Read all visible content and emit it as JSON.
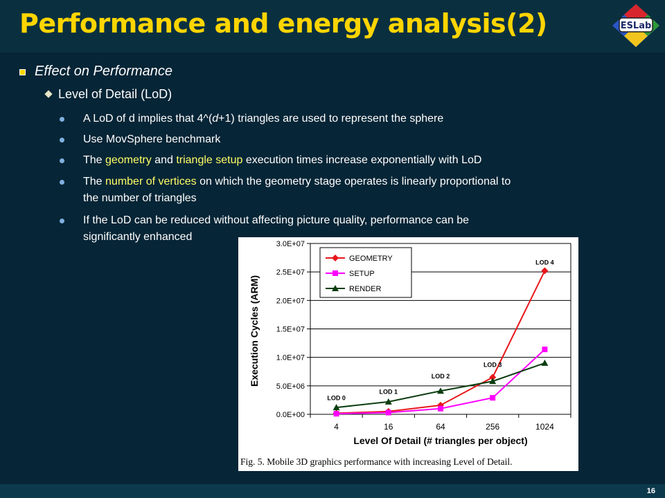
{
  "slide": {
    "title": "Performance and energy analysis(2)",
    "logo_text": "ESLab",
    "page_number": "16"
  },
  "bullets": {
    "l1": "Effect on Performance",
    "l2": "Level of Detail (LoD)",
    "b1a": "A LoD of d implies that 4^(",
    "b1b": "d",
    "b1c": "+1) triangles are used to represent the sphere",
    "b2": "Use MovSphere benchmark",
    "b3a": "The ",
    "b3b": "geometry",
    "b3c": " and ",
    "b3d": "triangle setup",
    "b3e": " execution times increase exponentially with LoD",
    "b4a": "The ",
    "b4b": "number of vertices",
    "b4c": " on which the geometry stage operates is linearly proportional to",
    "b4d": "the number of triangles",
    "b5a": "If the LoD can be reduced without affecting picture quality, performance can be",
    "b5b": "significantly enhanced"
  },
  "chart_data": {
    "type": "line",
    "xlabel": "Level Of Detail (# triangles per object)",
    "ylabel": "Execution Cycles (ARM)",
    "categories": [
      "4",
      "16",
      "64",
      "256",
      "1024"
    ],
    "ylim": [
      0,
      30000000
    ],
    "yticks": [
      "0.0E+00",
      "5.0E+06",
      "1.0E+07",
      "1.5E+07",
      "2.0E+07",
      "2.5E+07",
      "3.0E+07"
    ],
    "series": [
      {
        "name": "GEOMETRY",
        "color": "#e8161b",
        "marker": "diamond",
        "values": [
          200000,
          500000,
          1600000,
          6500000,
          25200000
        ]
      },
      {
        "name": "SETUP",
        "color": "#ff00ff",
        "marker": "square",
        "values": [
          100000,
          300000,
          1000000,
          2900000,
          11400000
        ]
      },
      {
        "name": "RENDER",
        "color": "#0b3d10",
        "marker": "triangle",
        "values": [
          1200000,
          2200000,
          4100000,
          5800000,
          9000000
        ]
      }
    ],
    "annotations": [
      {
        "text": "LOD 0",
        "index": 0,
        "value": 2500000
      },
      {
        "text": "LOD 1",
        "index": 1,
        "value": 3600000
      },
      {
        "text": "LOD 2",
        "index": 2,
        "value": 6300000
      },
      {
        "text": "LOD 3",
        "index": 3,
        "value": 8300000
      },
      {
        "text": "LOD 4",
        "index": 4,
        "value": 26300000
      }
    ],
    "legend_position": "top-left",
    "grid": true,
    "caption": "Fig. 5.    Mobile 3D graphics performance with increasing Level of Detail."
  }
}
